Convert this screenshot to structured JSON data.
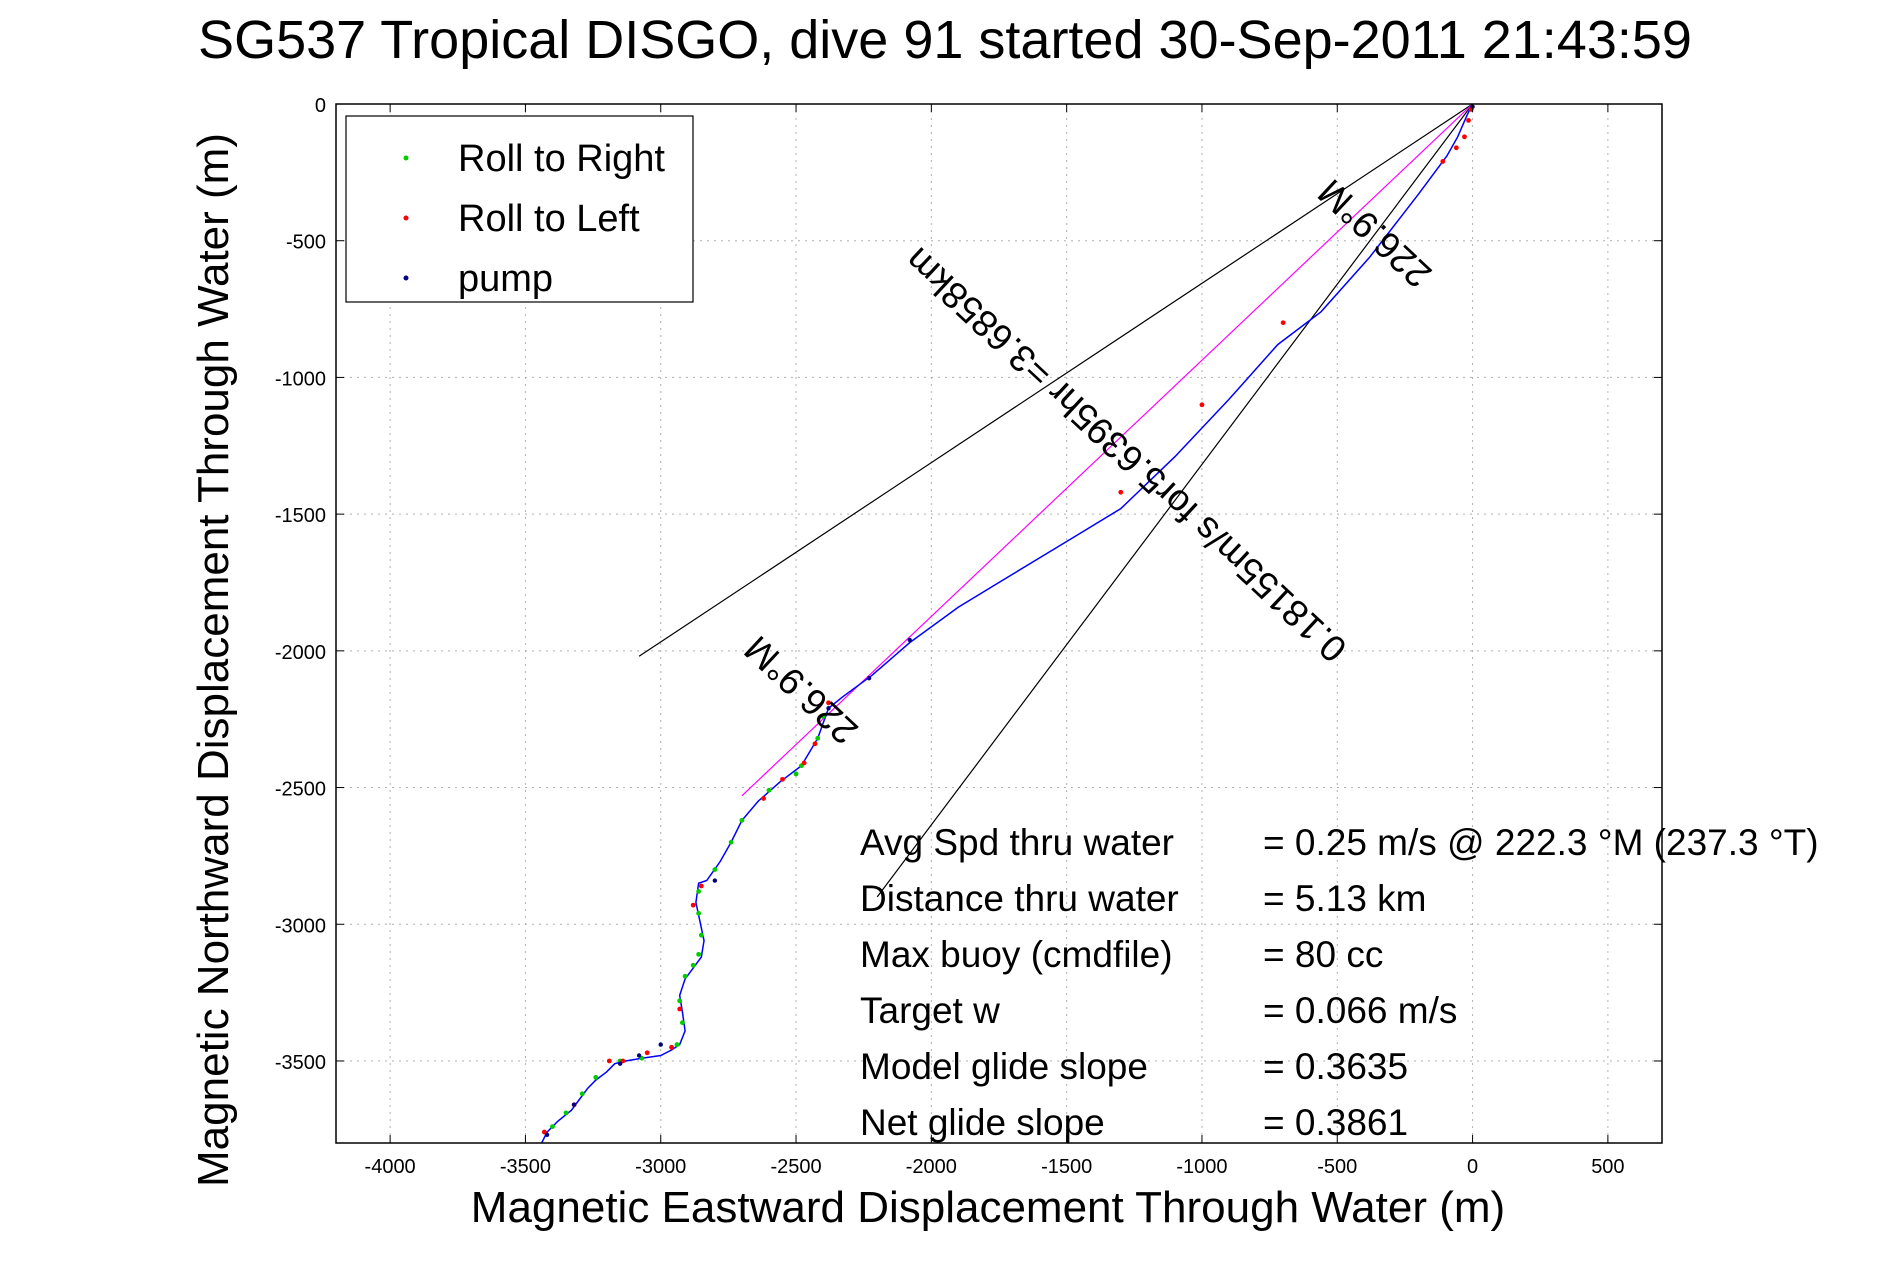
{
  "chart_data": {
    "type": "line",
    "title": "SG537 Tropical DISGO, dive 91 started 30-Sep-2011 21:43:59",
    "xlabel": "Magnetic Eastward Displacement Through Water (m)",
    "ylabel": "Magnetic Northward Displacement Through Water (m)",
    "xlim": [
      -4200,
      700
    ],
    "ylim": [
      -3800,
      0
    ],
    "xticks": [
      -4000,
      -3500,
      -3000,
      -2500,
      -2000,
      -1500,
      -1000,
      -500,
      0,
      500
    ],
    "yticks": [
      0,
      -500,
      -1000,
      -1500,
      -2000,
      -2500,
      -3000,
      -3500
    ],
    "grid": true,
    "legend_position": "top-left",
    "legend": [
      {
        "name": "Roll to Right",
        "color": "#00cc00"
      },
      {
        "name": "Roll to Left",
        "color": "#ff0000"
      },
      {
        "name": "pump",
        "color": "#000080"
      }
    ],
    "colors": {
      "track": "#0000ff",
      "heading": "#ff00ff",
      "cone": "#000000"
    },
    "track": {
      "x": [
        0,
        -20,
        -55,
        -95,
        -200,
        -380,
        -560,
        -720,
        -900,
        -1100,
        -1300,
        -1500,
        -1700,
        -1900,
        -2080,
        -2220,
        -2330,
        -2380,
        -2420,
        -2480,
        -2560,
        -2640,
        -2700,
        -2740,
        -2780,
        -2830,
        -2860,
        -2870,
        -2855,
        -2840,
        -2850,
        -2880,
        -2910,
        -2930,
        -2920,
        -2910,
        -2930,
        -2960,
        -3000,
        -3070,
        -3130,
        -3170,
        -3200,
        -3240,
        -3270,
        -3300,
        -3330,
        -3380,
        -3420,
        -3440
      ],
      "y": [
        0,
        -40,
        -120,
        -190,
        -330,
        -560,
        -760,
        -880,
        -1080,
        -1290,
        -1480,
        -1600,
        -1720,
        -1840,
        -1970,
        -2090,
        -2170,
        -2210,
        -2320,
        -2420,
        -2480,
        -2550,
        -2620,
        -2700,
        -2770,
        -2840,
        -2850,
        -2920,
        -2990,
        -3060,
        -3120,
        -3160,
        -3200,
        -3260,
        -3320,
        -3390,
        -3440,
        -3460,
        -3480,
        -3490,
        -3500,
        -3510,
        -3540,
        -3570,
        -3600,
        -3640,
        -3680,
        -3720,
        -3760,
        -3800
      ]
    },
    "roll_right": {
      "x": [
        -2400,
        -2420,
        -2480,
        -2500,
        -2600,
        -2700,
        -2740,
        -2800,
        -2860,
        -2860,
        -2850,
        -2860,
        -2880,
        -2910,
        -2930,
        -2920,
        -2940,
        -3070,
        -3150,
        -3240,
        -3290,
        -3350,
        -3400
      ],
      "y": [
        -2240,
        -2320,
        -2420,
        -2450,
        -2510,
        -2620,
        -2700,
        -2800,
        -2880,
        -2960,
        -3040,
        -3110,
        -3150,
        -3190,
        -3280,
        -3360,
        -3440,
        -3490,
        -3500,
        -3560,
        -3620,
        -3690,
        -3740
      ]
    },
    "roll_left": {
      "x": [
        -5,
        -15,
        -30,
        -60,
        -110,
        -700,
        -1000,
        -1300,
        -2380,
        -2430,
        -2470,
        -2550,
        -2620,
        -2850,
        -2880,
        -2930,
        -2960,
        -3050,
        -3140,
        -3190,
        -3320,
        -3430
      ],
      "y": [
        -20,
        -60,
        -120,
        -160,
        -210,
        -800,
        -1100,
        -1420,
        -2190,
        -2340,
        -2410,
        -2470,
        -2540,
        -2860,
        -2930,
        -3310,
        -3450,
        -3470,
        -3500,
        -3500,
        -3660,
        -3760
      ]
    },
    "pump": {
      "x": [
        0,
        -2080,
        -2230,
        -2380,
        -2800,
        -3000,
        -3080,
        -3150,
        -3320,
        -3420
      ],
      "y": [
        -10,
        -1960,
        -2100,
        -2210,
        -2840,
        -3440,
        -3480,
        -3510,
        -3660,
        -3770
      ]
    },
    "heading_line": {
      "x": [
        0,
        -2700
      ],
      "y": [
        0,
        -2530
      ]
    },
    "heading_cone": [
      {
        "x": [
          0,
          -3080
        ],
        "y": [
          0,
          -2020
        ]
      },
      {
        "x": [
          0,
          -2200
        ],
        "y": [
          0,
          -2900
        ]
      }
    ],
    "annotations": [
      {
        "text": "0.18155m/s for5.6395hr =3.6858km",
        "x": -1250,
        "y": -1250,
        "rotation": 223
      },
      {
        "text": "226.9°M",
        "x": -2450,
        "y": -2110,
        "rotation": 223
      },
      {
        "text": "226.9°M",
        "x": -330,
        "y": -440,
        "rotation": 223
      }
    ],
    "stats": [
      {
        "label": "Avg Spd thru water",
        "value": "=  0.25 m/s @ 222.3 °M (237.3 °T)"
      },
      {
        "label": "Distance thru water",
        "value": "=  5.13 km"
      },
      {
        "label": "Max buoy (cmdfile)",
        "value": "= 80 cc"
      },
      {
        "label": "Target w",
        "value": "= 0.066 m/s"
      },
      {
        "label": "Model glide slope",
        "value": "= 0.3635"
      },
      {
        "label": "Net glide slope",
        "value": "= 0.3861"
      }
    ]
  }
}
